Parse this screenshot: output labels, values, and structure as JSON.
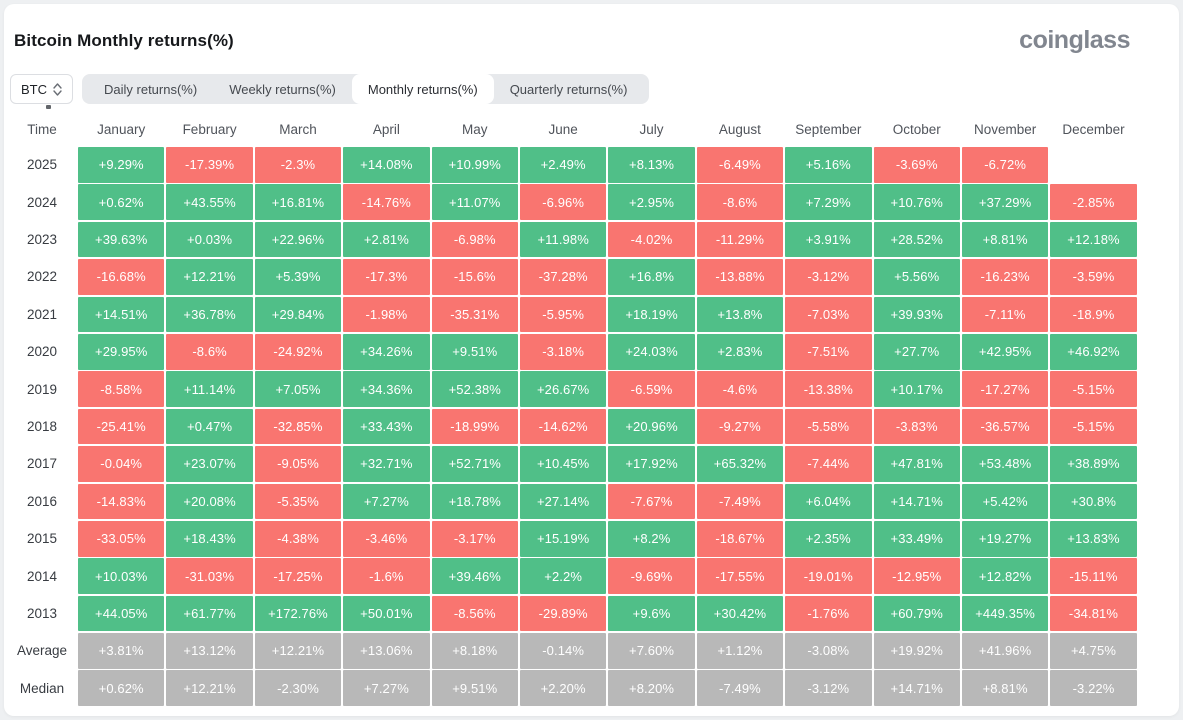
{
  "header": {
    "title": "Bitcoin Monthly returns(%)",
    "logo_text": "coinglass"
  },
  "controls": {
    "coin_selector": {
      "value": "BTC"
    },
    "tabs": [
      {
        "label": "Daily returns(%)",
        "active": false
      },
      {
        "label": "Weekly returns(%)",
        "active": false
      },
      {
        "label": "Monthly returns(%)",
        "active": true
      },
      {
        "label": "Quarterly returns(%)",
        "active": false
      }
    ]
  },
  "colors": {
    "positive": "#50bf88",
    "negative": "#f97570",
    "summary": "#b8b8b8"
  },
  "table": {
    "time_header": "Time",
    "months": [
      "January",
      "February",
      "March",
      "April",
      "May",
      "June",
      "July",
      "August",
      "September",
      "October",
      "November",
      "December"
    ],
    "rows": [
      {
        "label": "2025",
        "type": "year",
        "values": [
          "+9.29%",
          "-17.39%",
          "-2.3%",
          "+14.08%",
          "+10.99%",
          "+2.49%",
          "+8.13%",
          "-6.49%",
          "+5.16%",
          "-3.69%",
          "-6.72%",
          null
        ]
      },
      {
        "label": "2024",
        "type": "year",
        "values": [
          "+0.62%",
          "+43.55%",
          "+16.81%",
          "-14.76%",
          "+11.07%",
          "-6.96%",
          "+2.95%",
          "-8.6%",
          "+7.29%",
          "+10.76%",
          "+37.29%",
          "-2.85%"
        ]
      },
      {
        "label": "2023",
        "type": "year",
        "values": [
          "+39.63%",
          "+0.03%",
          "+22.96%",
          "+2.81%",
          "-6.98%",
          "+11.98%",
          "-4.02%",
          "-11.29%",
          "+3.91%",
          "+28.52%",
          "+8.81%",
          "+12.18%"
        ]
      },
      {
        "label": "2022",
        "type": "year",
        "values": [
          "-16.68%",
          "+12.21%",
          "+5.39%",
          "-17.3%",
          "-15.6%",
          "-37.28%",
          "+16.8%",
          "-13.88%",
          "-3.12%",
          "+5.56%",
          "-16.23%",
          "-3.59%"
        ]
      },
      {
        "label": "2021",
        "type": "year",
        "values": [
          "+14.51%",
          "+36.78%",
          "+29.84%",
          "-1.98%",
          "-35.31%",
          "-5.95%",
          "+18.19%",
          "+13.8%",
          "-7.03%",
          "+39.93%",
          "-7.11%",
          "-18.9%"
        ]
      },
      {
        "label": "2020",
        "type": "year",
        "values": [
          "+29.95%",
          "-8.6%",
          "-24.92%",
          "+34.26%",
          "+9.51%",
          "-3.18%",
          "+24.03%",
          "+2.83%",
          "-7.51%",
          "+27.7%",
          "+42.95%",
          "+46.92%"
        ]
      },
      {
        "label": "2019",
        "type": "year",
        "values": [
          "-8.58%",
          "+11.14%",
          "+7.05%",
          "+34.36%",
          "+52.38%",
          "+26.67%",
          "-6.59%",
          "-4.6%",
          "-13.38%",
          "+10.17%",
          "-17.27%",
          "-5.15%"
        ]
      },
      {
        "label": "2018",
        "type": "year",
        "values": [
          "-25.41%",
          "+0.47%",
          "-32.85%",
          "+33.43%",
          "-18.99%",
          "-14.62%",
          "+20.96%",
          "-9.27%",
          "-5.58%",
          "-3.83%",
          "-36.57%",
          "-5.15%"
        ]
      },
      {
        "label": "2017",
        "type": "year",
        "values": [
          "-0.04%",
          "+23.07%",
          "-9.05%",
          "+32.71%",
          "+52.71%",
          "+10.45%",
          "+17.92%",
          "+65.32%",
          "-7.44%",
          "+47.81%",
          "+53.48%",
          "+38.89%"
        ]
      },
      {
        "label": "2016",
        "type": "year",
        "values": [
          "-14.83%",
          "+20.08%",
          "-5.35%",
          "+7.27%",
          "+18.78%",
          "+27.14%",
          "-7.67%",
          "-7.49%",
          "+6.04%",
          "+14.71%",
          "+5.42%",
          "+30.8%"
        ]
      },
      {
        "label": "2015",
        "type": "year",
        "values": [
          "-33.05%",
          "+18.43%",
          "-4.38%",
          "-3.46%",
          "-3.17%",
          "+15.19%",
          "+8.2%",
          "-18.67%",
          "+2.35%",
          "+33.49%",
          "+19.27%",
          "+13.83%"
        ]
      },
      {
        "label": "2014",
        "type": "year",
        "values": [
          "+10.03%",
          "-31.03%",
          "-17.25%",
          "-1.6%",
          "+39.46%",
          "+2.2%",
          "-9.69%",
          "-17.55%",
          "-19.01%",
          "-12.95%",
          "+12.82%",
          "-15.11%"
        ]
      },
      {
        "label": "2013",
        "type": "year",
        "values": [
          "+44.05%",
          "+61.77%",
          "+172.76%",
          "+50.01%",
          "-8.56%",
          "-29.89%",
          "+9.6%",
          "+30.42%",
          "-1.76%",
          "+60.79%",
          "+449.35%",
          "-34.81%"
        ]
      },
      {
        "label": "Average",
        "type": "summary",
        "values": [
          "+3.81%",
          "+13.12%",
          "+12.21%",
          "+13.06%",
          "+8.18%",
          "-0.14%",
          "+7.60%",
          "+1.12%",
          "-3.08%",
          "+19.92%",
          "+41.96%",
          "+4.75%"
        ]
      },
      {
        "label": "Median",
        "type": "summary",
        "values": [
          "+0.62%",
          "+12.21%",
          "-2.30%",
          "+7.27%",
          "+9.51%",
          "+2.20%",
          "+8.20%",
          "-7.49%",
          "-3.12%",
          "+14.71%",
          "+8.81%",
          "-3.22%"
        ]
      }
    ]
  }
}
